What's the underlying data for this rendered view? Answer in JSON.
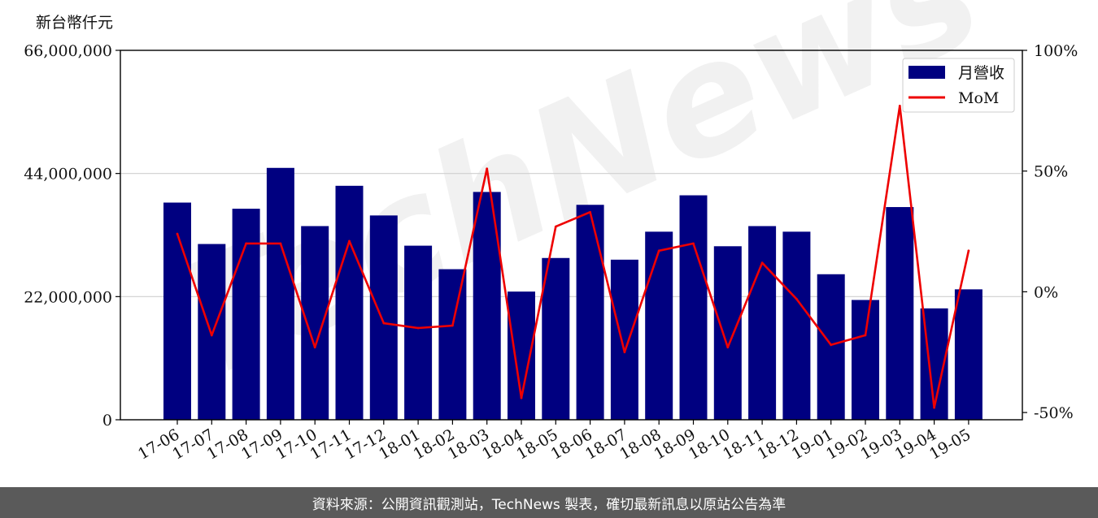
{
  "chart_data": {
    "type": "bar+line",
    "unit_label": "新台幣仟元",
    "categories": [
      "17-06",
      "17-07",
      "17-08",
      "17-09",
      "17-10",
      "17-11",
      "17-12",
      "18-01",
      "18-02",
      "18-03",
      "18-04",
      "18-05",
      "18-06",
      "18-07",
      "18-08",
      "18-09",
      "18-10",
      "18-11",
      "18-12",
      "19-01",
      "19-02",
      "19-03",
      "19-04",
      "19-05"
    ],
    "series": [
      {
        "name": "月營收",
        "type": "bar",
        "axis": "left",
        "color": "#000080",
        "values": [
          38800000,
          31400000,
          37700000,
          45000000,
          34600000,
          41800000,
          36500000,
          31100000,
          26900000,
          40700000,
          22900000,
          28900000,
          38400000,
          28600000,
          33600000,
          40100000,
          31000000,
          34600000,
          33600000,
          26000000,
          21400000,
          38000000,
          19900000,
          23300000
        ]
      },
      {
        "name": "MoM",
        "type": "line",
        "axis": "right",
        "color": "#ee0000",
        "unit": "%",
        "values": [
          24,
          -18,
          20,
          20,
          -23,
          21,
          -13,
          -15,
          -14,
          51,
          -44,
          27,
          33,
          -25,
          17,
          20,
          -23,
          12,
          -3,
          -22,
          -18,
          77,
          -48,
          17
        ]
      }
    ],
    "y_left": {
      "lim": [
        0,
        66000000
      ],
      "ticks": [
        0,
        22000000,
        44000000,
        66000000
      ],
      "tick_labels": [
        "0",
        "22,000,000",
        "44,000,000",
        "66,000,000"
      ]
    },
    "y_right": {
      "lim": [
        -53,
        100
      ],
      "ticks": [
        -50,
        0,
        50,
        100
      ],
      "tick_labels": [
        "-50%",
        "0%",
        "50%",
        "100%"
      ]
    },
    "grid": "horizontal",
    "legend_position": "top-right"
  },
  "watermark": "TechNews",
  "footer": {
    "text": "資料來源：公開資訊觀測站，TechNews 製表，確切最新訊息以原站公告為準"
  }
}
